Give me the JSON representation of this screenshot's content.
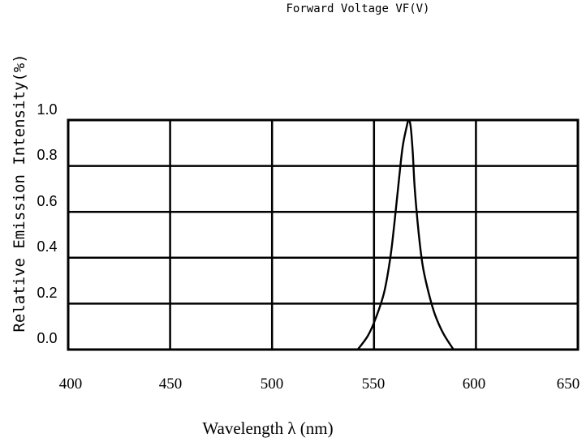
{
  "chart_data": {
    "type": "line",
    "title": "Forward Voltage VF(V)",
    "xlabel": "Wavelength λ (nm)",
    "ylabel": "Relative Emission Intensity(%)",
    "xlim": [
      400,
      650
    ],
    "ylim": [
      0,
      1.0
    ],
    "x_ticks": [
      "400",
      "450",
      "500",
      "550",
      "600",
      "650"
    ],
    "y_ticks": [
      "1.0",
      "0.8",
      "0.6",
      "0.4",
      "0.2",
      "0.0"
    ],
    "grid": true,
    "series": [
      {
        "points": [
          [
            542,
            0.0
          ],
          [
            547,
            0.06
          ],
          [
            551,
            0.14
          ],
          [
            555,
            0.25
          ],
          [
            558,
            0.4
          ],
          [
            560,
            0.55
          ],
          [
            562,
            0.72
          ],
          [
            564,
            0.88
          ],
          [
            566,
            0.97
          ],
          [
            567,
            1.0
          ],
          [
            568,
            0.97
          ],
          [
            569,
            0.86
          ],
          [
            570,
            0.7
          ],
          [
            572,
            0.5
          ],
          [
            574,
            0.36
          ],
          [
            577,
            0.24
          ],
          [
            580,
            0.15
          ],
          [
            584,
            0.07
          ],
          [
            589,
            0.0
          ]
        ],
        "color": "#000000"
      }
    ]
  }
}
